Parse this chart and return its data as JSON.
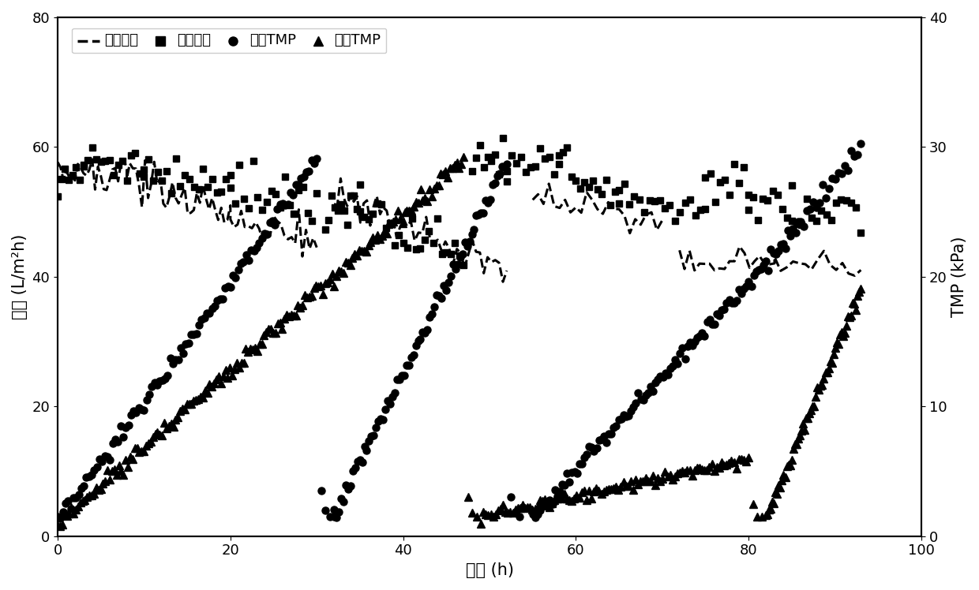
{
  "xlabel": "时间 (h)",
  "ylabel_left": "通量 (L/m²h)",
  "ylabel_right": "TMP (kPa)",
  "xlim": [
    0,
    100
  ],
  "ylim_left": [
    0,
    80
  ],
  "ylim_right": [
    0,
    40
  ],
  "yticks_left": [
    0,
    20,
    40,
    60,
    80
  ],
  "yticks_right": [
    0,
    10,
    20,
    30,
    40
  ],
  "xticks": [
    0,
    20,
    40,
    60,
    80,
    100
  ],
  "legend_labels": [
    "一级通量",
    "二级通量",
    "一级TMP",
    "二级TMP"
  ],
  "bg_color": "#ffffff",
  "line_color": "#000000",
  "fontsize_tick": 13,
  "fontsize_label": 15,
  "fontsize_legend": 13
}
